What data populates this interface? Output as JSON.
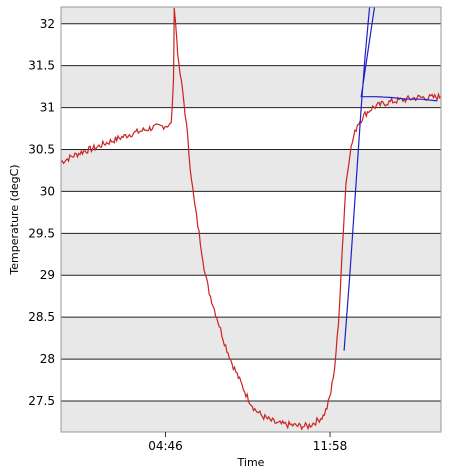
{
  "chart_data": {
    "type": "line",
    "title": "",
    "xlabel": "Time",
    "ylabel": "Temperature (degC)",
    "ylim": [
      27.13,
      32.2
    ],
    "yticks": [
      27.5,
      28,
      28.5,
      29,
      29.5,
      30,
      30.5,
      31,
      31.5,
      32
    ],
    "ytick_labels": [
      "27.5",
      "28",
      "28.5",
      "29",
      "29.5",
      "30",
      "30.5",
      "31",
      "31.5",
      "32"
    ],
    "xlim": [
      0,
      1
    ],
    "xticks": [
      0.275,
      0.708
    ],
    "xtick_labels": [
      "04:46",
      "11:58"
    ],
    "grid": true,
    "alternating_bands": true,
    "colors": {
      "red_series": "#cc2222",
      "blue_series": "#2020cc",
      "band": "#e8e8e8",
      "grid": "#222222"
    },
    "series": [
      {
        "color": "#cc2222",
        "x": [
          0.0,
          0.03,
          0.06,
          0.09,
          0.12,
          0.15,
          0.18,
          0.21,
          0.24,
          0.27,
          0.29,
          0.296,
          0.298,
          0.305,
          0.31,
          0.32,
          0.33,
          0.34,
          0.35,
          0.36,
          0.37,
          0.38,
          0.39,
          0.41,
          0.43,
          0.45,
          0.47,
          0.49,
          0.51,
          0.53,
          0.55,
          0.57,
          0.59,
          0.61,
          0.63,
          0.65,
          0.67,
          0.69,
          0.7,
          0.71,
          0.72,
          0.73,
          0.74,
          0.75,
          0.76,
          0.77,
          0.78,
          0.8,
          0.82,
          0.85,
          0.88,
          0.91,
          0.94,
          0.97,
          1.0
        ],
        "y": [
          30.35,
          30.42,
          30.48,
          30.52,
          30.58,
          30.63,
          30.68,
          30.72,
          30.76,
          30.78,
          30.8,
          31.3,
          32.2,
          31.8,
          31.5,
          31.2,
          30.8,
          30.3,
          29.9,
          29.6,
          29.3,
          29.0,
          28.8,
          28.5,
          28.2,
          27.95,
          27.75,
          27.55,
          27.4,
          27.32,
          27.27,
          27.23,
          27.22,
          27.21,
          27.2,
          27.2,
          27.25,
          27.32,
          27.42,
          27.6,
          27.9,
          28.4,
          29.3,
          30.1,
          30.45,
          30.65,
          30.8,
          30.92,
          31.0,
          31.05,
          31.08,
          31.1,
          31.12,
          31.12,
          31.13
        ]
      },
      {
        "color": "#2020cc",
        "x": [
          0.745,
          0.76,
          0.775,
          0.79,
          0.8,
          0.812,
          0.825,
          0.79,
          0.83,
          0.87,
          0.91,
          0.95,
          0.99
        ],
        "y": [
          28.1,
          29.0,
          30.0,
          31.0,
          31.6,
          32.2,
          32.2,
          31.13,
          31.13,
          31.12,
          31.1,
          31.1,
          31.08
        ]
      }
    ]
  }
}
